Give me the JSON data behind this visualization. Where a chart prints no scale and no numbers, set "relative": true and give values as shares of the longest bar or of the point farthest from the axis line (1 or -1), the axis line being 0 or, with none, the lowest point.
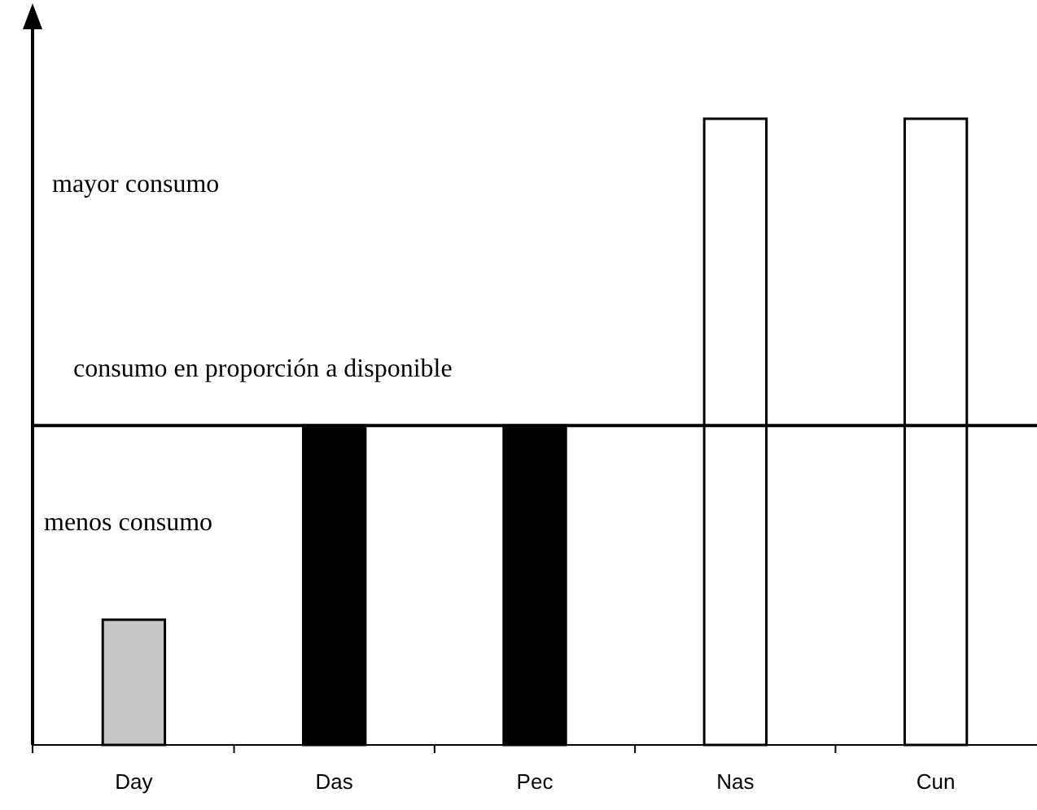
{
  "chart_data": {
    "type": "bar",
    "relative": true,
    "categories": [
      "Day",
      "Das",
      "Pec",
      "Nas",
      "Cun"
    ],
    "values": [
      0.2,
      0.51,
      0.51,
      1,
      1
    ],
    "colors": [
      "#c8c8c8",
      "#000000",
      "#000000",
      "#ffffff",
      "#ffffff"
    ],
    "ref_lines": [
      {
        "axis": "y",
        "value": 0.51,
        "label": "consumo en proporción a disponible",
        "color": "#000000"
      }
    ],
    "annotations": [
      "mayor consumo",
      "menos consumo"
    ]
  }
}
